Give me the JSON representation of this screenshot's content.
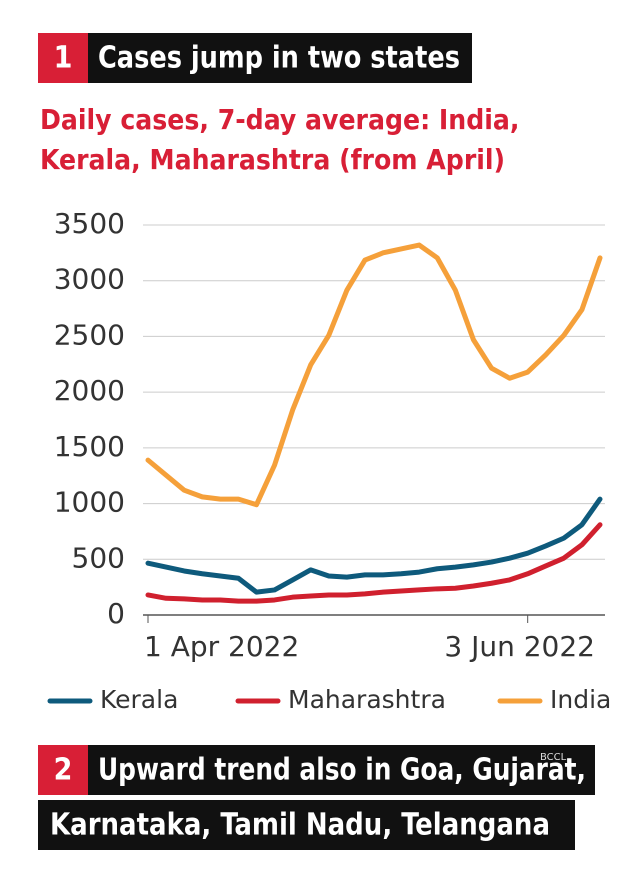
{
  "heading": {
    "number": "1",
    "text": "Cases jump in two states"
  },
  "chart_data": {
    "type": "line",
    "title": "Daily cases, 7-day average: India, Kerala, Maharashtra (from April)",
    "x": [
      "2022-04-01",
      "2022-04-04",
      "2022-04-07",
      "2022-04-10",
      "2022-04-13",
      "2022-04-16",
      "2022-04-19",
      "2022-04-22",
      "2022-04-25",
      "2022-04-28",
      "2022-05-01",
      "2022-05-04",
      "2022-05-07",
      "2022-05-10",
      "2022-05-13",
      "2022-05-16",
      "2022-05-19",
      "2022-05-22",
      "2022-05-25",
      "2022-05-28",
      "2022-05-31",
      "2022-06-03",
      "2022-06-06",
      "2022-06-09",
      "2022-06-12",
      "2022-06-15"
    ],
    "series": [
      {
        "name": "Kerala",
        "color": "#0e5a7c",
        "values": [
          465,
          430,
          395,
          370,
          350,
          330,
          205,
          225,
          315,
          405,
          350,
          340,
          360,
          360,
          370,
          385,
          415,
          430,
          450,
          475,
          510,
          555,
          620,
          690,
          810,
          1040
        ]
      },
      {
        "name": "Maharashtra",
        "color": "#d0202e",
        "values": [
          180,
          150,
          145,
          135,
          135,
          125,
          125,
          135,
          160,
          170,
          180,
          180,
          190,
          205,
          215,
          225,
          235,
          240,
          260,
          285,
          315,
          370,
          440,
          510,
          630,
          810
        ]
      },
      {
        "name": "India",
        "color": "#f5a03a",
        "values": [
          1390,
          1255,
          1120,
          1060,
          1040,
          1040,
          990,
          1345,
          1840,
          2245,
          2510,
          2915,
          3185,
          3250,
          3285,
          3320,
          3205,
          2915,
          2470,
          2215,
          2125,
          2180,
          2335,
          2510,
          2740,
          3205
        ]
      }
    ],
    "xlim": [
      "2022-04-01",
      "2022-06-15"
    ],
    "xticks": [
      {
        "value": "2022-04-01",
        "label": "1 Apr 2022"
      },
      {
        "value": "2022-06-03",
        "label": "3 Jun 2022"
      }
    ],
    "ylim": [
      0,
      3500
    ],
    "yticks": [
      0,
      500,
      1000,
      1500,
      2000,
      2500,
      3000,
      3500
    ],
    "grid": true,
    "legend": "bottom"
  },
  "footer": {
    "number": "2",
    "lines": [
      "Upward trend also in Goa, Gujarat,",
      "Karnataka, Tamil Nadu, Telangana"
    ]
  },
  "watermark": "BCCL"
}
